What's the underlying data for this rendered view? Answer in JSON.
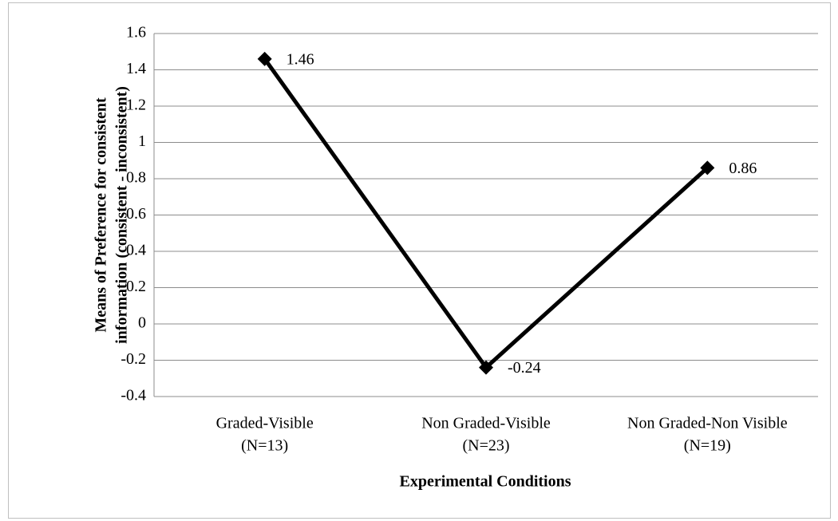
{
  "chart_data": {
    "type": "line",
    "categories": [
      [
        "Graded-Visible",
        "(N=13)"
      ],
      [
        "Non Graded-Visible",
        "(N=23)"
      ],
      [
        "Non Graded-Non Visible",
        "(N=19)"
      ]
    ],
    "series": [
      {
        "color": "#000000",
        "values": [
          1.46,
          -0.24,
          0.86
        ]
      }
    ],
    "ylim": [
      -0.4,
      1.6
    ],
    "yticks": [
      -0.4,
      -0.2,
      0,
      0.2,
      0.4,
      0.6,
      0.8,
      1,
      1.2,
      1.4,
      1.6
    ],
    "xlabel": "Experimental Conditions",
    "ylabel": [
      "Means of Preference for consistent",
      "information (consistent - inconsistent)"
    ],
    "grid": true
  }
}
